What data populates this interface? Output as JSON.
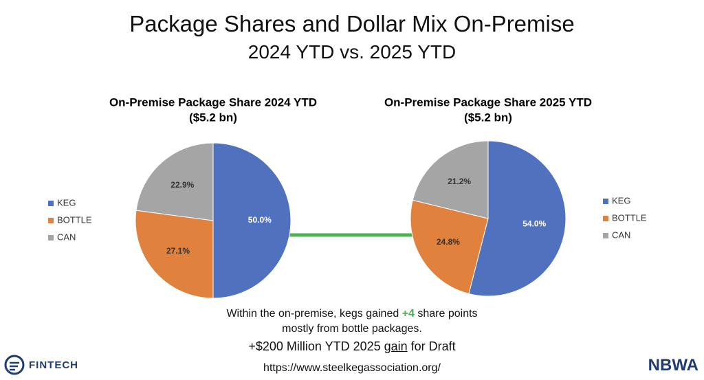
{
  "title": "Package Shares and Dollar Mix On-Premise",
  "subtitle": "2024 YTD vs. 2025 YTD",
  "chart_data": [
    {
      "type": "pie",
      "title": "On-Premise Package Share 2024 YTD",
      "subtitle": "($5.2 bn)",
      "categories": [
        "KEG",
        "BOTTLE",
        "CAN"
      ],
      "values": [
        50.0,
        27.1,
        22.9
      ],
      "value_labels": [
        "50.0%",
        "27.1%",
        "22.9%"
      ],
      "colors": [
        "#4f71be",
        "#e0823e",
        "#a5a5a5"
      ],
      "legend": "left"
    },
    {
      "type": "pie",
      "title": "On-Premise Package Share 2025 YTD",
      "subtitle": "($5.2 bn)",
      "categories": [
        "KEG",
        "BOTTLE",
        "CAN"
      ],
      "values": [
        54.0,
        24.8,
        21.2
      ],
      "value_labels": [
        "54.0%",
        "24.8%",
        "21.2%"
      ],
      "colors": [
        "#4f71be",
        "#e0823e",
        "#a5a5a5"
      ],
      "legend": "right"
    }
  ],
  "note": {
    "line1_before": "Within the on-premise, kegs gained ",
    "highlight": "+4",
    "line1_after": " share points",
    "line2": "mostly from bottle packages."
  },
  "claim": {
    "before": "+$200 Million YTD 2025 ",
    "underlined": "gain",
    "after": " for Draft"
  },
  "url": "https://www.steelkegassociation.org/",
  "logos": {
    "left": "FINTECH",
    "right": "NBWA"
  }
}
